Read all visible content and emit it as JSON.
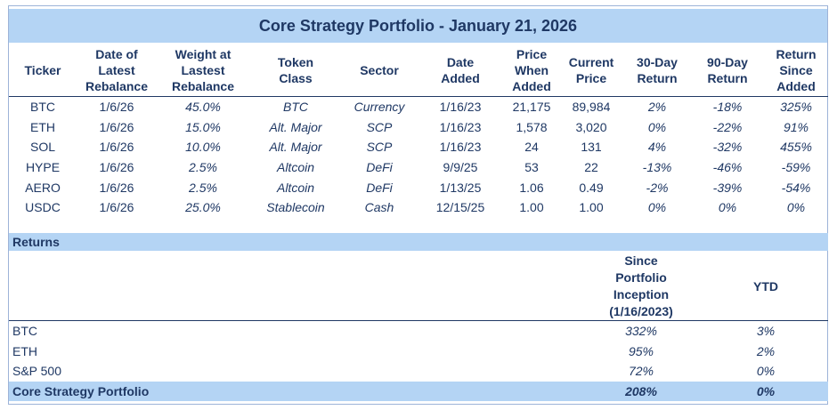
{
  "title": "Core Strategy Portfolio - January 21, 2026",
  "holdings": {
    "headers": {
      "ticker": "Ticker",
      "rebalance_date": [
        "Date of",
        "Latest",
        "Rebalance"
      ],
      "weight": [
        "Weight at",
        "Lastest",
        "Rebalance"
      ],
      "token_class": [
        "Token",
        "Class"
      ],
      "sector": "Sector",
      "date_added": [
        "Date",
        "Added"
      ],
      "price_added": [
        "Price",
        "When",
        "Added"
      ],
      "current_price": [
        "Current",
        "Price"
      ],
      "ret30": [
        "30-Day",
        "Return"
      ],
      "ret90": [
        "90-Day",
        "Return"
      ],
      "ret_since": [
        "Return",
        "Since",
        "Added"
      ]
    },
    "rows": [
      {
        "ticker": "BTC",
        "rebalance": "1/6/26",
        "weight": "45.0%",
        "token_class": "BTC",
        "sector": "Currency",
        "date_added": "1/16/23",
        "price_added": "21,175",
        "current_price": "89,984",
        "ret30": "2%",
        "ret90": "-18%",
        "ret_since": "325%"
      },
      {
        "ticker": "ETH",
        "rebalance": "1/6/26",
        "weight": "15.0%",
        "token_class": "Alt. Major",
        "sector": "SCP",
        "date_added": "1/16/23",
        "price_added": "1,578",
        "current_price": "3,020",
        "ret30": "0%",
        "ret90": "-22%",
        "ret_since": "91%"
      },
      {
        "ticker": "SOL",
        "rebalance": "1/6/26",
        "weight": "10.0%",
        "token_class": "Alt. Major",
        "sector": "SCP",
        "date_added": "1/16/23",
        "price_added": "24",
        "current_price": "131",
        "ret30": "4%",
        "ret90": "-32%",
        "ret_since": "455%"
      },
      {
        "ticker": "HYPE",
        "rebalance": "1/6/26",
        "weight": "2.5%",
        "token_class": "Altcoin",
        "sector": "DeFi",
        "date_added": "9/9/25",
        "price_added": "53",
        "current_price": "22",
        "ret30": "-13%",
        "ret90": "-46%",
        "ret_since": "-59%"
      },
      {
        "ticker": "AERO",
        "rebalance": "1/6/26",
        "weight": "2.5%",
        "token_class": "Altcoin",
        "sector": "DeFi",
        "date_added": "1/13/25",
        "price_added": "1.06",
        "current_price": "0.49",
        "ret30": "-2%",
        "ret90": "-39%",
        "ret_since": "-54%"
      },
      {
        "ticker": "USDC",
        "rebalance": "1/6/26",
        "weight": "25.0%",
        "token_class": "Stablecoin",
        "sector": "Cash",
        "date_added": "12/15/25",
        "price_added": "1.00",
        "current_price": "1.00",
        "ret30": "0%",
        "ret90": "0%",
        "ret_since": "0%"
      }
    ]
  },
  "returns": {
    "section_label": "Returns",
    "headers": {
      "since_inception": [
        "Since",
        "Portfolio",
        "Inception",
        "(1/16/2023)"
      ],
      "ytd": "YTD"
    },
    "rows": [
      {
        "name": "BTC",
        "since": "332%",
        "ytd": "3%"
      },
      {
        "name": "ETH",
        "since": "95%",
        "ytd": "2%"
      },
      {
        "name": "S&P 500",
        "since": "72%",
        "ytd": "0%"
      },
      {
        "name": "Core Strategy Portfolio",
        "since": "208%",
        "ytd": "0%"
      }
    ]
  },
  "colors": {
    "header_fill": "#b4d4f4",
    "text": "#1f3864",
    "positive": "#2ca02c",
    "negative": "#e0262c"
  }
}
